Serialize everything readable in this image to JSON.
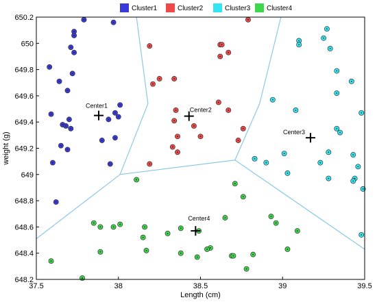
{
  "chart_data": {
    "type": "scatter",
    "xlabel": "Length (cm)",
    "ylabel": "weight (g)",
    "xlim": [
      37.5,
      39.5
    ],
    "ylim": [
      648.2,
      650.2
    ],
    "x_ticks": [
      37.5,
      38,
      38.5,
      39,
      39.5
    ],
    "x_tick_labels": [
      "37.5",
      "38",
      "38.5",
      "39",
      "39.5"
    ],
    "y_ticks": [
      648.2,
      648.4,
      648.6,
      648.8,
      649,
      649.2,
      649.4,
      649.6,
      649.8,
      650,
      650.2
    ],
    "y_tick_labels": [
      "648.2",
      "648.4",
      "648.6",
      "648.8",
      "649",
      "649.2",
      "649.4",
      "649.6",
      "649.8",
      "650",
      "650.2"
    ],
    "grid": false,
    "legend_position": "top-center",
    "series": [
      {
        "name": "Cluster1",
        "color": "#3a3adb",
        "points": [
          [
            37.79,
            650.18
          ],
          [
            37.73,
            650.09
          ],
          [
            37.73,
            650.06
          ],
          [
            37.71,
            649.97
          ],
          [
            37.73,
            649.93
          ],
          [
            37.58,
            649.82
          ],
          [
            37.72,
            649.77
          ],
          [
            37.64,
            649.71
          ],
          [
            37.69,
            649.64
          ],
          [
            37.59,
            649.46
          ],
          [
            37.7,
            649.42
          ],
          [
            37.66,
            649.38
          ],
          [
            37.68,
            649.37
          ],
          [
            37.71,
            649.35
          ],
          [
            37.65,
            649.22
          ],
          [
            37.69,
            649.19
          ],
          [
            37.6,
            649.09
          ],
          [
            37.62,
            648.79
          ],
          [
            37.97,
            650.16
          ],
          [
            38.01,
            649.53
          ],
          [
            37.98,
            649.47
          ],
          [
            37.94,
            649.42
          ],
          [
            38.0,
            649.44
          ],
          [
            37.98,
            649.28
          ],
          [
            37.9,
            649.26
          ],
          [
            37.95,
            649.08
          ]
        ]
      },
      {
        "name": "Cluster2",
        "color": "#ee4a4a",
        "points": [
          [
            38.79,
            650.18
          ],
          [
            38.62,
            649.99
          ],
          [
            38.63,
            649.99
          ],
          [
            38.67,
            649.93
          ],
          [
            38.62,
            649.9
          ],
          [
            38.19,
            649.98
          ],
          [
            38.25,
            649.73
          ],
          [
            38.34,
            649.73
          ],
          [
            38.21,
            649.69
          ],
          [
            38.61,
            649.55
          ],
          [
            38.35,
            649.49
          ],
          [
            38.67,
            649.49
          ],
          [
            38.34,
            649.41
          ],
          [
            38.46,
            649.37
          ],
          [
            38.76,
            649.35
          ],
          [
            38.36,
            649.29
          ],
          [
            38.5,
            649.29
          ],
          [
            38.73,
            649.26
          ],
          [
            38.33,
            649.21
          ],
          [
            38.36,
            649.17
          ],
          [
            38.19,
            649.08
          ]
        ]
      },
      {
        "name": "Cluster3",
        "color": "#33e5f2",
        "points": [
          [
            39.27,
            650.11
          ],
          [
            39.1,
            650.02
          ],
          [
            39.1,
            649.99
          ],
          [
            39.25,
            650.04
          ],
          [
            39.29,
            649.96
          ],
          [
            39.33,
            649.79
          ],
          [
            39.42,
            649.71
          ],
          [
            39.33,
            649.62
          ],
          [
            38.94,
            649.57
          ],
          [
            39.08,
            649.49
          ],
          [
            39.48,
            649.47
          ],
          [
            39.33,
            649.35
          ],
          [
            39.35,
            649.32
          ],
          [
            39.01,
            649.16
          ],
          [
            39.28,
            649.17
          ],
          [
            39.43,
            649.15
          ],
          [
            38.83,
            649.12
          ],
          [
            38.9,
            649.09
          ],
          [
            39.23,
            649.09
          ],
          [
            39.46,
            649.06
          ],
          [
            39.44,
            648.97
          ],
          [
            39.03,
            649.01
          ],
          [
            39.28,
            648.97
          ],
          [
            39.43,
            648.95
          ],
          [
            39.49,
            648.89
          ],
          [
            39.48,
            648.54
          ]
        ]
      },
      {
        "name": "Cluster4",
        "color": "#3ed64a",
        "points": [
          [
            38.11,
            648.96
          ],
          [
            38.71,
            648.93
          ],
          [
            38.76,
            648.83
          ],
          [
            38.93,
            648.68
          ],
          [
            38.65,
            648.67
          ],
          [
            37.85,
            648.63
          ],
          [
            37.89,
            648.6
          ],
          [
            38.01,
            648.62
          ],
          [
            38.16,
            648.6
          ],
          [
            37.97,
            648.6
          ],
          [
            38.38,
            648.59
          ],
          [
            38.96,
            648.63
          ],
          [
            38.49,
            648.57
          ],
          [
            39.09,
            648.57
          ],
          [
            38.3,
            648.55
          ],
          [
            38.15,
            648.52
          ],
          [
            38.56,
            648.44
          ],
          [
            38.54,
            648.43
          ],
          [
            37.89,
            648.41
          ],
          [
            38.17,
            648.42
          ],
          [
            38.69,
            648.38
          ],
          [
            38.7,
            648.38
          ],
          [
            38.38,
            648.4
          ],
          [
            38.48,
            648.37
          ],
          [
            38.82,
            648.39
          ],
          [
            39.03,
            648.43
          ],
          [
            37.59,
            648.34
          ],
          [
            38.78,
            648.28
          ],
          [
            37.78,
            648.21
          ]
        ]
      }
    ],
    "centers": [
      {
        "label": "Center1",
        "x": 37.88,
        "y": 649.45
      },
      {
        "label": "Center2",
        "x": 38.43,
        "y": 649.445
      },
      {
        "label": "Center3",
        "x": 39.17,
        "y": 649.28
      },
      {
        "label": "Center4",
        "x": 38.47,
        "y": 648.57
      }
    ],
    "boundary_lines": [
      [
        [
          38.11,
          650.2
        ],
        [
          38.18,
          649.54
        ]
      ],
      [
        [
          38.18,
          649.54
        ],
        [
          38.01,
          649.0
        ]
      ],
      [
        [
          38.01,
          649.0
        ],
        [
          37.5,
          648.51
        ]
      ],
      [
        [
          38.01,
          649.0
        ],
        [
          38.71,
          649.11
        ]
      ],
      [
        [
          38.71,
          649.11
        ],
        [
          38.86,
          649.54
        ]
      ],
      [
        [
          38.86,
          649.54
        ],
        [
          38.99,
          650.2
        ]
      ],
      [
        [
          38.71,
          649.11
        ],
        [
          39.5,
          648.43
        ]
      ]
    ],
    "boundary_color": "#8cc8e6"
  }
}
